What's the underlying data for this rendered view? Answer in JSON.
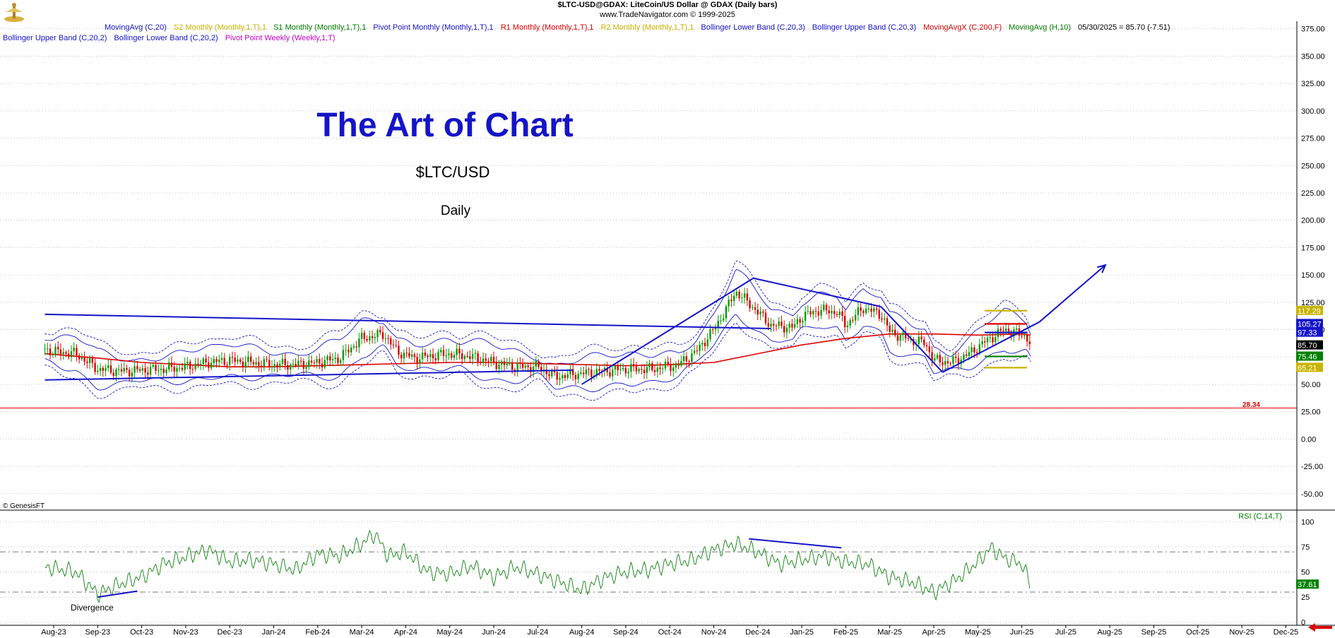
{
  "header": {
    "title": "$LTC-USD@GDAX:  LiteCoin/US Dollar @ GDAX  (Daily bars)",
    "copyright": "www.TradeNavigator.com © 1999-2025"
  },
  "legend_top": [
    {
      "text": "MovingAvg (C,20)",
      "color": "#1414c8"
    },
    {
      "text": "S2 Monthly (Monthly,1,T),1",
      "color": "#c8b400"
    },
    {
      "text": "S1 Monthly (Monthly,1,T),1",
      "color": "#008000"
    },
    {
      "text": "Pivot Point Monthly (Monthly,1,T),1",
      "color": "#1414c8"
    },
    {
      "text": "R1 Monthly (Monthly,1,T),1",
      "color": "#dc0000"
    },
    {
      "text": "R2 Monthly (Monthly,1,T),1",
      "color": "#c8b400"
    },
    {
      "text": "Bollinger Lower Band (C,20,3)",
      "color": "#1414c8"
    },
    {
      "text": "Bollinger Upper Band (C,20,3)",
      "color": "#1414c8"
    },
    {
      "text": "MovingAvgX (C,200,F)",
      "color": "#dc0000"
    },
    {
      "text": "MovingAvg (H,10)",
      "color": "#008000"
    },
    {
      "text": "05/30/2025 = 85.70 (-7.51)",
      "color": "#000000"
    }
  ],
  "legend_second": [
    {
      "text": "Bollinger Upper Band (C,20,2)",
      "color": "#1414c8"
    },
    {
      "text": "Bollinger Lower Band (C,20,2)",
      "color": "#1414c8"
    },
    {
      "text": "Pivot Point Weekly (Weekly,1,T)",
      "color": "#c800c8"
    }
  ],
  "annotations": {
    "main_title": "The Art of Chart",
    "symbol": "$LTC/USD",
    "period": "Daily",
    "genesis": "© GenesisFT",
    "divergence": "Divergence",
    "rsi_label": "RSI (C,14,T)",
    "horizontal_value": "28.34"
  },
  "chart_data": {
    "type": "line",
    "price_axis": {
      "ylim": [
        -65,
        380
      ],
      "ticks": [
        "375.00",
        "350.00",
        "325.00",
        "300.00",
        "275.00",
        "250.00",
        "225.00",
        "200.00",
        "175.00",
        "150.00",
        "125.00",
        "100.00",
        "75.00",
        "50.00",
        "25.00",
        "0.00",
        "-25.00",
        "-50.00"
      ],
      "tick_values": [
        375,
        350,
        325,
        300,
        275,
        250,
        225,
        200,
        175,
        150,
        125,
        100,
        75,
        50,
        25,
        0,
        -25,
        -50
      ]
    },
    "rsi_axis": {
      "ylim": [
        -3,
        108
      ],
      "ticks": [
        "100",
        "75",
        "50",
        "25",
        "0"
      ],
      "tick_values": [
        100,
        75,
        50,
        25,
        0
      ],
      "levels": [
        70,
        30
      ]
    },
    "x_months": [
      "Aug-23",
      "Sep-23",
      "Oct-23",
      "Nov-23",
      "Dec-23",
      "Jan-24",
      "Feb-24",
      "Mar-24",
      "Apr-24",
      "May-24",
      "Jun-24",
      "Jul-24",
      "Aug-24",
      "Sep-24",
      "Oct-24",
      "Nov-24",
      "Dec-24",
      "Jan-25",
      "Feb-25",
      "Mar-25",
      "Apr-25",
      "May-25",
      "Jun-25",
      "Jul-25",
      "Aug-25",
      "Sep-25",
      "Oct-25",
      "Nov-25",
      "Dec-25"
    ],
    "price_path": [
      [
        -0.2,
        82
      ],
      [
        0,
        80
      ],
      [
        0.5,
        78
      ],
      [
        1,
        64
      ],
      [
        1.5,
        62
      ],
      [
        2,
        63
      ],
      [
        2.5,
        64
      ],
      [
        3,
        66
      ],
      [
        3.5,
        70
      ],
      [
        4,
        72
      ],
      [
        4.5,
        70
      ],
      [
        5,
        68
      ],
      [
        5.5,
        68
      ],
      [
        6,
        70
      ],
      [
        6.5,
        74
      ],
      [
        7,
        92
      ],
      [
        7.5,
        96
      ],
      [
        7.8,
        80
      ],
      [
        8.2,
        74
      ],
      [
        8.6,
        76
      ],
      [
        9,
        78
      ],
      [
        9.4,
        76
      ],
      [
        9.8,
        72
      ],
      [
        10.2,
        68
      ],
      [
        10.6,
        66
      ],
      [
        11,
        66
      ],
      [
        11.4,
        57
      ],
      [
        12,
        60
      ],
      [
        12.5,
        62
      ],
      [
        13,
        64
      ],
      [
        13.6,
        64
      ],
      [
        14.2,
        68
      ],
      [
        14.6,
        80
      ],
      [
        15,
        100
      ],
      [
        15.3,
        120
      ],
      [
        15.5,
        135
      ],
      [
        15.8,
        124
      ],
      [
        16.3,
        104
      ],
      [
        16.8,
        102
      ],
      [
        17,
        112
      ],
      [
        17.4,
        118
      ],
      [
        17.8,
        116
      ],
      [
        18,
        104
      ],
      [
        18.4,
        120
      ],
      [
        18.8,
        114
      ],
      [
        19,
        98
      ],
      [
        19.5,
        90
      ],
      [
        19.8,
        88
      ],
      [
        20,
        72
      ],
      [
        20.4,
        70
      ],
      [
        20.8,
        78
      ],
      [
        21.2,
        90
      ],
      [
        21.6,
        100
      ],
      [
        22.1,
        94
      ],
      [
        22.2,
        85.7
      ]
    ],
    "ma200_path": [
      [
        -0.2,
        78
      ],
      [
        1,
        74
      ],
      [
        2,
        70
      ],
      [
        3,
        68
      ],
      [
        4,
        66
      ],
      [
        5,
        66
      ],
      [
        6,
        67
      ],
      [
        7,
        68
      ],
      [
        8,
        69
      ],
      [
        9,
        70
      ],
      [
        10,
        70
      ],
      [
        11,
        69
      ],
      [
        12,
        68
      ],
      [
        13,
        67
      ],
      [
        14,
        68
      ],
      [
        15,
        70
      ],
      [
        16,
        78
      ],
      [
        17,
        86
      ],
      [
        18,
        92
      ],
      [
        19,
        96
      ],
      [
        20,
        96
      ],
      [
        21,
        95
      ],
      [
        22,
        96
      ],
      [
        22.2,
        95
      ]
    ],
    "bollinger_outer_width": 19,
    "bollinger_inner_width": 11,
    "rsi_path": [
      [
        -0.2,
        55
      ],
      [
        0.5,
        50
      ],
      [
        1,
        28
      ],
      [
        1.5,
        38
      ],
      [
        2,
        45
      ],
      [
        2.5,
        58
      ],
      [
        3,
        65
      ],
      [
        3.5,
        72
      ],
      [
        4,
        60
      ],
      [
        4.5,
        62
      ],
      [
        5,
        58
      ],
      [
        5.5,
        52
      ],
      [
        6,
        68
      ],
      [
        6.5,
        66
      ],
      [
        7,
        78
      ],
      [
        7.3,
        88
      ],
      [
        7.6,
        66
      ],
      [
        8,
        70
      ],
      [
        8.5,
        50
      ],
      [
        9,
        48
      ],
      [
        9.5,
        56
      ],
      [
        10,
        45
      ],
      [
        10.5,
        55
      ],
      [
        11,
        48
      ],
      [
        11.5,
        40
      ],
      [
        12,
        32
      ],
      [
        12.5,
        44
      ],
      [
        13,
        50
      ],
      [
        13.5,
        52
      ],
      [
        14,
        58
      ],
      [
        14.5,
        62
      ],
      [
        15,
        72
      ],
      [
        15.5,
        78
      ],
      [
        16,
        70
      ],
      [
        16.5,
        58
      ],
      [
        17,
        62
      ],
      [
        17.5,
        66
      ],
      [
        18,
        60
      ],
      [
        18.5,
        58
      ],
      [
        19,
        45
      ],
      [
        19.5,
        40
      ],
      [
        20,
        30
      ],
      [
        20.5,
        42
      ],
      [
        21,
        60
      ],
      [
        21.3,
        74
      ],
      [
        21.6,
        64
      ],
      [
        22,
        58
      ],
      [
        22.2,
        37.61
      ]
    ],
    "trendlines_price": [
      {
        "from": [
          -0.2,
          114
        ],
        "to": [
          16.3,
          101
        ]
      },
      {
        "from": [
          -0.2,
          54
        ],
        "to": [
          11.8,
          63
        ]
      },
      {
        "from": [
          12,
          50
        ],
        "to": [
          15.9,
          147
        ]
      },
      {
        "from": [
          15.9,
          147
        ],
        "to": [
          18.8,
          121
        ]
      },
      {
        "from": [
          18.8,
          121
        ],
        "to": [
          20.2,
          61
        ]
      },
      {
        "from": [
          20.2,
          61
        ],
        "to": [
          22.4,
          107
        ]
      }
    ],
    "projection_arrow": {
      "from": [
        22.4,
        107
      ],
      "to": [
        23.9,
        159
      ]
    },
    "trendlines_rsi": [
      {
        "from": [
          1,
          25
        ],
        "to": [
          1.9,
          31
        ]
      },
      {
        "from": [
          15.8,
          83
        ],
        "to": [
          17.9,
          74
        ]
      }
    ],
    "pivot_levels": [
      {
        "name": "R2 Monthly",
        "value": 117.29,
        "color": "#c8b400"
      },
      {
        "name": "R1 Monthly",
        "value": 105.27,
        "color": "#dc0000"
      },
      {
        "name": "Pivot Point Monthly",
        "value": 97.33,
        "color": "#1414c8"
      },
      {
        "name": "S1 Monthly",
        "value": 75.46,
        "color": "#008000"
      },
      {
        "name": "S2 Monthly",
        "value": 65.21,
        "color": "#c8b400"
      }
    ],
    "right_badges": [
      {
        "value": 117.29,
        "label": "117.29",
        "bg": "#c8b400",
        "fg": "#ffffff"
      },
      {
        "value": 105.27,
        "label": "105.27",
        "bg": "#1414c8",
        "fg": "#ffffff"
      },
      {
        "value": 97.33,
        "label": "97.33",
        "bg": "#1414c8",
        "fg": "#ffffff"
      },
      {
        "value": 85.7,
        "label": "85.70",
        "bg": "#000000",
        "fg": "#ffffff"
      },
      {
        "value": 75.46,
        "label": "75.46",
        "bg": "#008000",
        "fg": "#ffffff"
      },
      {
        "value": 65.21,
        "label": "65.21",
        "bg": "#c8b400",
        "fg": "#ffffff"
      }
    ],
    "rsi_badge": {
      "value": 37.61,
      "label": "37.61",
      "bg": "#008000",
      "fg": "#ffffff"
    },
    "horizontal_line": {
      "value": 28.34,
      "color": "#dc0000"
    },
    "colors": {
      "price_up": "#00a000",
      "price_down": "#dc0000",
      "band": "#1414c8",
      "ma200": "#dc0000",
      "rsi": "#228b22",
      "trend": "#1414c8",
      "grid": "#b4b4b4"
    }
  }
}
